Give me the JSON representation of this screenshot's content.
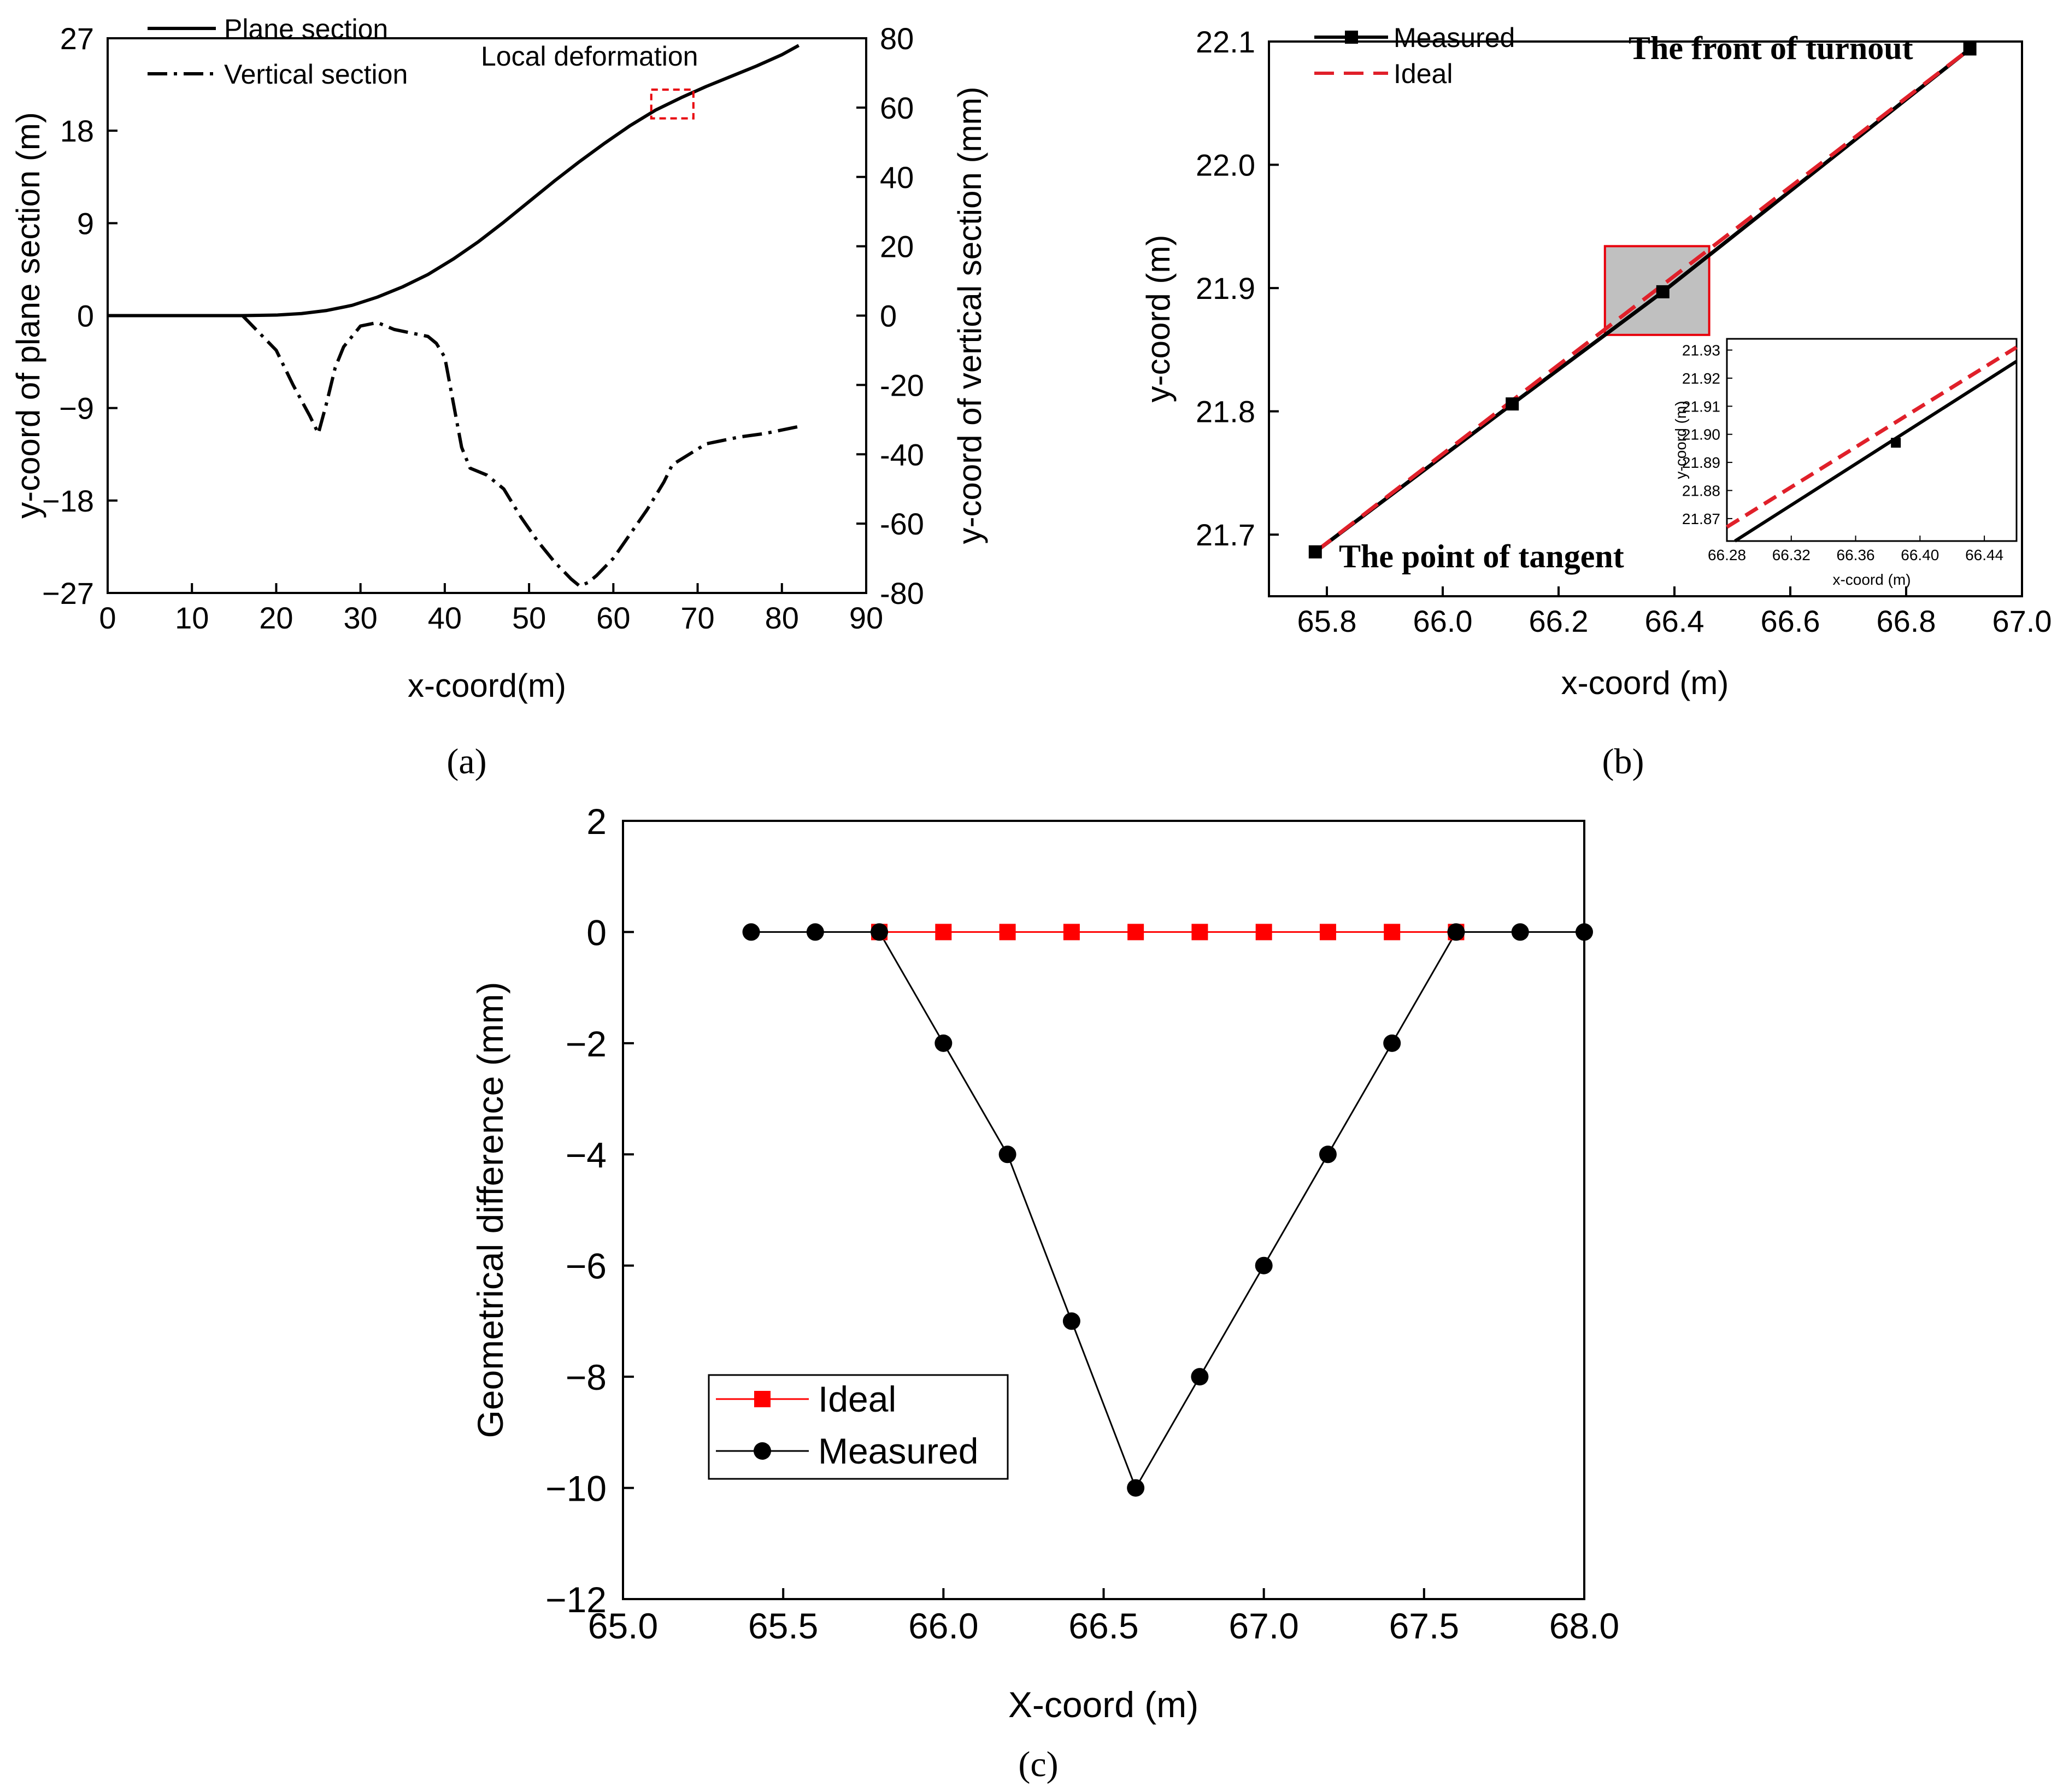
{
  "chart_data": [
    {
      "panel": "a",
      "type": "line",
      "caption": "(a)",
      "xlabel": "x-coord(m)",
      "ylabel_left": "y-coord of plane section (m)",
      "ylabel_right": "y-coord of vertical section (mm)",
      "xlim": [
        0,
        90
      ],
      "ylim_left": [
        -27,
        27
      ],
      "ylim_right": [
        -80,
        80
      ],
      "xticks": [
        0,
        10,
        20,
        30,
        40,
        50,
        60,
        70,
        80,
        90
      ],
      "yticks_left": [
        -27,
        -18,
        -9,
        0,
        9,
        18,
        27
      ],
      "yticks_right": [
        -80,
        -60,
        -40,
        -20,
        0,
        20,
        40,
        60,
        80
      ],
      "annotation": "Local deformation",
      "highlight_box": {
        "x": [
          64.5,
          69.5
        ],
        "y": [
          19.2,
          22.0
        ]
      },
      "series": [
        {
          "name": "Plane section",
          "axis": "left",
          "style": "solid",
          "x": [
            0,
            10,
            16,
            20,
            23,
            26,
            29,
            32,
            35,
            38,
            41,
            44,
            47,
            50,
            53,
            56,
            59,
            62,
            65,
            68,
            71,
            74,
            77,
            80,
            82
          ],
          "y": [
            0,
            0,
            0,
            0.05,
            0.2,
            0.5,
            1.0,
            1.8,
            2.8,
            4.0,
            5.5,
            7.2,
            9.1,
            11.1,
            13.1,
            15.0,
            16.8,
            18.5,
            20.0,
            21.2,
            22.3,
            23.3,
            24.3,
            25.4,
            26.3
          ]
        },
        {
          "name": "Vertical section",
          "axis": "right",
          "style": "dashdot",
          "x": [
            16,
            18,
            20,
            22,
            24,
            25,
            26,
            27,
            28,
            30,
            32,
            34,
            36,
            38,
            39,
            40,
            41,
            42,
            43,
            45,
            47,
            49,
            51,
            53,
            55,
            56,
            57,
            58,
            60,
            62,
            64,
            66,
            67,
            69,
            71,
            73,
            75,
            78,
            80,
            82
          ],
          "y": [
            0,
            -5,
            -10,
            -20,
            -29,
            -34,
            -25,
            -15,
            -9,
            -3,
            -2,
            -4,
            -5,
            -6,
            -8,
            -12,
            -25,
            -38,
            -44,
            -46,
            -50,
            -58,
            -65,
            -71,
            -76,
            -78,
            -77,
            -75,
            -70,
            -63,
            -56,
            -48,
            -43,
            -40,
            -37,
            -36,
            -35,
            -34,
            -33,
            -32
          ]
        }
      ]
    },
    {
      "panel": "b",
      "type": "line",
      "caption": "(b)",
      "xlabel": "x-coord (m)",
      "ylabel": "y-coord (m)",
      "xlim": [
        65.7,
        67.0
      ],
      "ylim": [
        21.65,
        22.1
      ],
      "xticks": [
        "65.8",
        "66.0",
        "66.2",
        "66.4",
        "66.6",
        "66.8",
        "67.0"
      ],
      "yticks": [
        "21.7",
        "21.8",
        "21.9",
        "22.0",
        "22.1"
      ],
      "annotations": {
        "start": "The point of tangent",
        "end": "The front of turnout"
      },
      "highlight_box": {
        "x": [
          66.28,
          66.46
        ],
        "y": [
          21.862,
          21.934
        ]
      },
      "series": [
        {
          "name": "Measured",
          "style": "solid",
          "color": "#000000",
          "marker": "square",
          "x": [
            65.78,
            66.12,
            66.38,
            66.91
          ],
          "y": [
            21.686,
            21.806,
            21.897,
            22.094
          ]
        },
        {
          "name": "Ideal",
          "style": "dashed",
          "color": "#e0202a",
          "x": [
            65.78,
            66.91
          ],
          "y": [
            21.686,
            22.094
          ]
        }
      ],
      "inset": {
        "xlabel": "x-coord (m)",
        "ylabel": "y-coord (m)",
        "xlim": [
          66.28,
          66.46
        ],
        "ylim": [
          21.862,
          21.934
        ],
        "xticks": [
          "66.28",
          "66.32",
          "66.36",
          "66.40",
          "66.44"
        ],
        "yticks": [
          "21.87",
          "21.88",
          "21.89",
          "21.90",
          "21.91",
          "21.92",
          "21.93"
        ],
        "series": [
          {
            "name": "Measured",
            "x": [
              66.285,
              66.46
            ],
            "y": [
              21.862,
              21.926
            ],
            "marker_x": 66.385,
            "marker_y": 21.897
          },
          {
            "name": "Ideal",
            "x": [
              66.28,
              66.46
            ],
            "y": [
              21.867,
              21.931
            ]
          }
        ]
      }
    },
    {
      "panel": "c",
      "type": "line",
      "caption": "(c)",
      "xlabel": "X-coord (m)",
      "ylabel": "Geometrical difference (mm)",
      "xlim": [
        65.0,
        68.0
      ],
      "ylim": [
        -12,
        2
      ],
      "xticks": [
        "65.0",
        "65.5",
        "66.0",
        "66.5",
        "67.0",
        "67.5",
        "68.0"
      ],
      "yticks": [
        "2",
        "0",
        "−2",
        "−4",
        "−6",
        "−8",
        "−10",
        "−12"
      ],
      "categories": [
        65.4,
        65.6,
        65.8,
        66.0,
        66.2,
        66.4,
        66.6,
        66.8,
        67.0,
        67.2,
        67.4,
        67.6,
        67.8,
        68.0
      ],
      "series": [
        {
          "name": "Ideal",
          "color": "#ff0000",
          "marker": "square",
          "x": [
            65.8,
            66.0,
            66.2,
            66.4,
            66.6,
            66.8,
            67.0,
            67.2,
            67.4,
            67.6
          ],
          "values": [
            0,
            0,
            0,
            0,
            0,
            0,
            0,
            0,
            0,
            0
          ]
        },
        {
          "name": "Measured",
          "color": "#000000",
          "marker": "circle",
          "x": [
            65.4,
            65.6,
            65.8,
            66.0,
            66.2,
            66.4,
            66.6,
            66.8,
            67.0,
            67.2,
            67.4,
            67.6,
            67.8,
            68.0
          ],
          "values": [
            0,
            0,
            0,
            -2,
            -4,
            -7,
            -10,
            -8,
            -6,
            -4,
            -2,
            0,
            0,
            0
          ]
        }
      ]
    }
  ]
}
